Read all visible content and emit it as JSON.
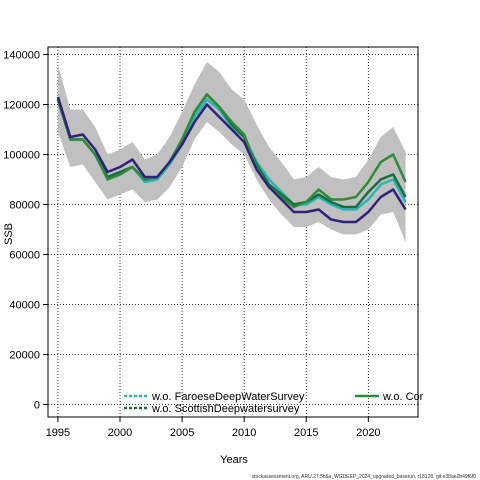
{
  "chart_data": {
    "type": "line",
    "xlabel": "Years",
    "ylabel": "SSB",
    "xlim": [
      1994.2,
      2024
    ],
    "ylim": [
      -5000,
      143000
    ],
    "x_ticks": [
      1995,
      2000,
      2005,
      2010,
      2015,
      2020
    ],
    "y_ticks": [
      0,
      20000,
      40000,
      60000,
      80000,
      100000,
      120000,
      140000
    ],
    "grid": true,
    "legend_placement": "bottom",
    "x": [
      1995,
      1996,
      1997,
      1998,
      1999,
      2000,
      2001,
      2002,
      2003,
      2004,
      2005,
      2006,
      2007,
      2008,
      2009,
      2010,
      2011,
      2012,
      2013,
      2014,
      2015,
      2016,
      2017,
      2018,
      2019,
      2020,
      2021,
      2022,
      2023
    ],
    "band": {
      "upper": [
        136000,
        118000,
        118000,
        111000,
        100000,
        102000,
        105000,
        98000,
        100000,
        107000,
        117000,
        128000,
        137000,
        133000,
        126000,
        122000,
        112000,
        103000,
        97000,
        90000,
        91000,
        95000,
        91000,
        90000,
        91000,
        98000,
        107000,
        111000,
        101000
      ],
      "lower": [
        109000,
        95000,
        96000,
        89000,
        82000,
        84000,
        86000,
        81000,
        82000,
        87000,
        95000,
        106000,
        113000,
        109000,
        104000,
        100000,
        90000,
        82000,
        76000,
        71000,
        71000,
        73000,
        70000,
        68000,
        68000,
        70000,
        76000,
        77000,
        65000
      ]
    },
    "series": [
      {
        "name": "w.o. FaroeseDeepWaterSurvey",
        "color": "#2ab5b5",
        "dashed": true,
        "values": [
          122000,
          106000,
          106000,
          100000,
          91000,
          93000,
          95000,
          89000,
          90000,
          96000,
          104000,
          115000,
          122000,
          118000,
          111000,
          107000,
          97000,
          90000,
          85000,
          80000,
          80000,
          83000,
          80000,
          78000,
          78000,
          82000,
          88000,
          90000,
          81000
        ]
      },
      {
        "name": "w.o. ScottishDeepwatersurvey",
        "color": "#1a6b3c",
        "dashed": true,
        "values": [
          122000,
          106000,
          106000,
          100000,
          91000,
          93000,
          95000,
          90000,
          91000,
          97000,
          106000,
          117000,
          124000,
          119000,
          112000,
          107000,
          96000,
          88000,
          84000,
          80000,
          81000,
          84000,
          81000,
          79000,
          79000,
          85000,
          90000,
          92000,
          83000
        ]
      },
      {
        "name": "w.o. Cor",
        "color": "#2e8b3a",
        "dashed": false,
        "values": [
          122000,
          106000,
          106000,
          100000,
          90000,
          92000,
          95000,
          90000,
          91000,
          97000,
          106000,
          117000,
          124000,
          119000,
          113000,
          108000,
          95000,
          87000,
          83000,
          79000,
          81000,
          86000,
          82000,
          82000,
          83000,
          89000,
          97000,
          100000,
          89000
        ]
      },
      {
        "name": "",
        "color": "#32217a",
        "dashed": false,
        "values": [
          123000,
          107000,
          108000,
          102000,
          93000,
          95000,
          98000,
          91000,
          91000,
          97000,
          104000,
          113000,
          120000,
          115000,
          110000,
          105000,
          94000,
          87000,
          82000,
          77000,
          77000,
          78000,
          74000,
          73000,
          73000,
          77000,
          83000,
          86000,
          78000
        ]
      }
    ]
  },
  "legend": {
    "items": [
      {
        "label": "w.o. FaroeseDeepWaterSurvey",
        "color": "#2ab5b5",
        "dashed": true
      },
      {
        "label": "w.o. ScottishDeepwatersurvey",
        "color": "#1a6b3c",
        "dashed": true
      },
      {
        "label": "w.o. Cor",
        "color": "#2e8b3a",
        "dashed": false
      }
    ]
  },
  "footer": "stockassessment.org, ARU.27.5b6a_WGDEEP_2024_upgraded_baserun, r18128, git e38ae2b49f6f0"
}
